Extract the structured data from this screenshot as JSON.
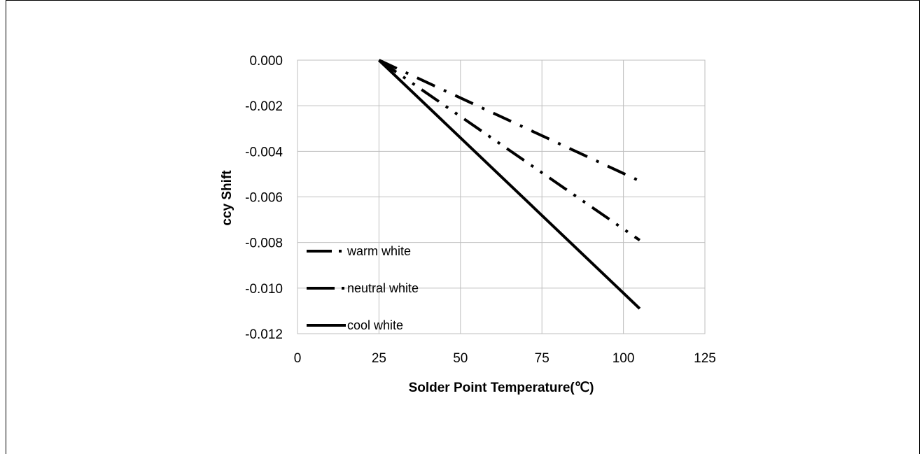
{
  "chart_data": {
    "type": "line",
    "title": "",
    "xlabel": "Solder Point Temperature(℃)",
    "ylabel": "ccy Shift",
    "xlim": [
      0,
      125
    ],
    "ylim": [
      -0.012,
      0.0
    ],
    "x_ticks": [
      "0",
      "25",
      "50",
      "75",
      "100",
      "125"
    ],
    "y_ticks": [
      "0.000",
      "-0.002",
      "-0.004",
      "-0.006",
      "-0.008",
      "-0.010",
      "-0.012"
    ],
    "grid": true,
    "legend_position": "bottom-left",
    "series": [
      {
        "name": "warm white",
        "style": "dash-dot",
        "x": [
          25,
          105
        ],
        "y": [
          0.0,
          -0.0053
        ]
      },
      {
        "name": "neutral white",
        "style": "dash-dot-dot",
        "x": [
          25,
          105
        ],
        "y": [
          0.0,
          -0.0079
        ]
      },
      {
        "name": "cool white",
        "style": "solid",
        "x": [
          25,
          105
        ],
        "y": [
          0.0,
          -0.0109
        ]
      }
    ]
  }
}
